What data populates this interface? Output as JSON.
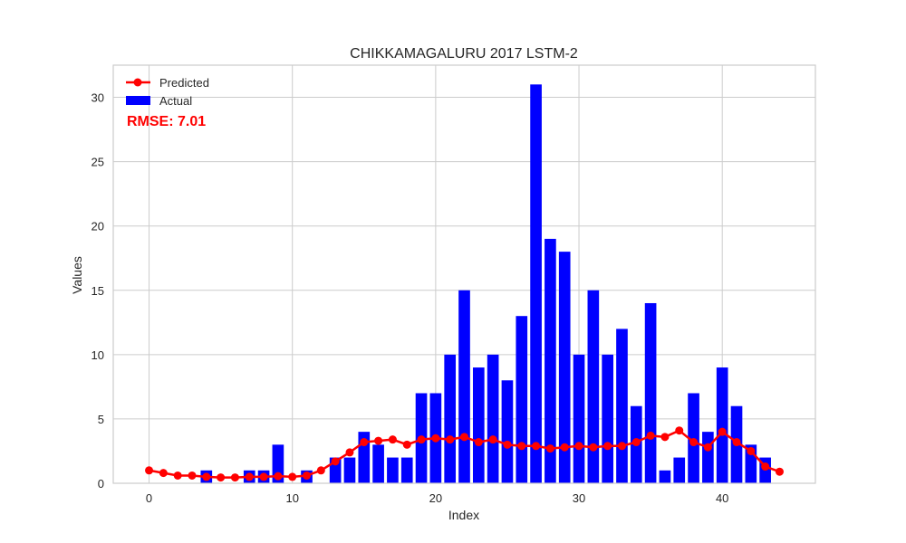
{
  "chart_data": {
    "type": "bar",
    "title": "CHIKKAMAGALURU 2017 LSTM-2",
    "xlabel": "Index",
    "ylabel": "Values",
    "xlim": [
      -2.5,
      46.5
    ],
    "ylim": [
      0,
      32.5
    ],
    "xticks": [
      0,
      10,
      20,
      30,
      40
    ],
    "yticks": [
      0,
      5,
      10,
      15,
      20,
      25,
      30
    ],
    "grid": true,
    "legend_position": "top-left",
    "annotation": "RMSE: 7.01",
    "colors": {
      "actual": "#0000ff",
      "predicted": "#ff0000",
      "annotation": "#ff0000"
    },
    "series": [
      {
        "name": "Predicted",
        "type": "line",
        "x": [
          0,
          1,
          2,
          3,
          4,
          5,
          6,
          7,
          8,
          9,
          10,
          11,
          12,
          13,
          14,
          15,
          16,
          17,
          18,
          19,
          20,
          21,
          22,
          23,
          24,
          25,
          26,
          27,
          28,
          29,
          30,
          31,
          32,
          33,
          34,
          35,
          36,
          37,
          38,
          39,
          40,
          41,
          42,
          43,
          44
        ],
        "values": [
          1.0,
          0.8,
          0.6,
          0.6,
          0.5,
          0.45,
          0.45,
          0.5,
          0.5,
          0.55,
          0.5,
          0.6,
          1.0,
          1.7,
          2.4,
          3.2,
          3.3,
          3.4,
          3.0,
          3.4,
          3.5,
          3.4,
          3.6,
          3.2,
          3.4,
          3.0,
          2.9,
          2.9,
          2.7,
          2.8,
          2.9,
          2.8,
          2.9,
          2.9,
          3.2,
          3.7,
          3.6,
          4.1,
          3.2,
          2.8,
          4.0,
          3.2,
          2.5,
          1.3,
          0.9
        ]
      },
      {
        "name": "Actual",
        "type": "bar",
        "x": [
          0,
          1,
          2,
          3,
          4,
          5,
          6,
          7,
          8,
          9,
          10,
          11,
          12,
          13,
          14,
          15,
          16,
          17,
          18,
          19,
          20,
          21,
          22,
          23,
          24,
          25,
          26,
          27,
          28,
          29,
          30,
          31,
          32,
          33,
          34,
          35,
          36,
          37,
          38,
          39,
          40,
          41,
          42,
          43
        ],
        "values": [
          0,
          0,
          0,
          0,
          1,
          0,
          0,
          1,
          1,
          3,
          0,
          1,
          0,
          2,
          2,
          4,
          3,
          2,
          2,
          7,
          7,
          10,
          15,
          9,
          10,
          8,
          13,
          31,
          19,
          18,
          10,
          15,
          10,
          12,
          6,
          14,
          1,
          2,
          7,
          4,
          9,
          6,
          3,
          2
        ]
      }
    ]
  }
}
